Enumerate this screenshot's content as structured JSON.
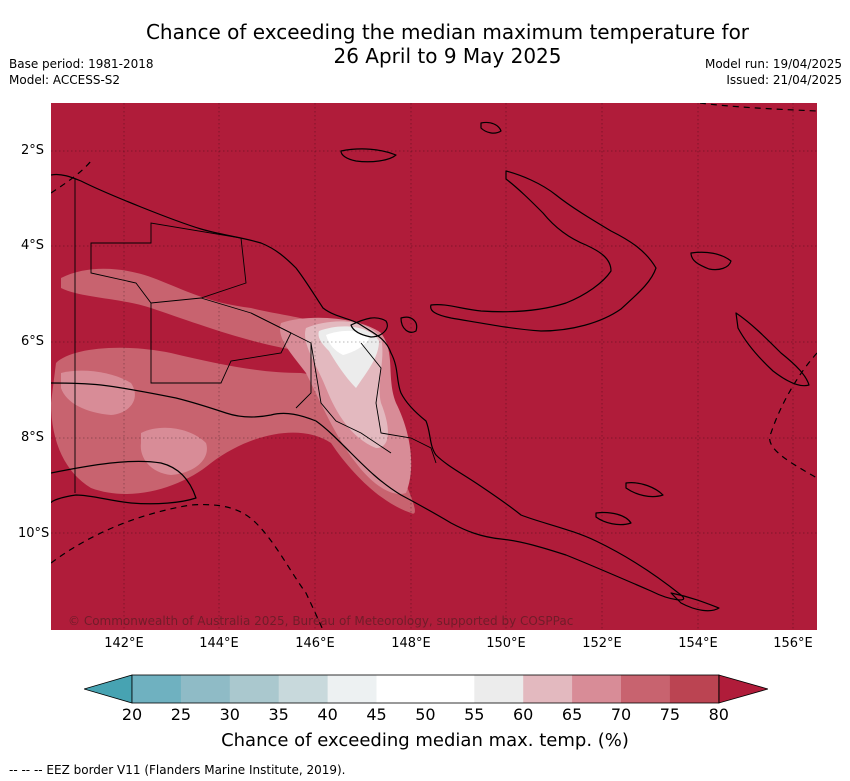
{
  "title_line1": "Chance of exceeding the median maximum temperature for",
  "title_line2": "26 April to 9 May 2025",
  "base_period": "Base period: 1981-2018",
  "model": "Model: ACCESS-S2",
  "model_run": "Model run: 19/04/2025",
  "issued": "Issued: 21/04/2025",
  "lat_labels": [
    "2°S",
    "4°S",
    "6°S",
    "8°S",
    "10°S"
  ],
  "lon_labels": [
    "142°E",
    "144°E",
    "146°E",
    "148°E",
    "150°E",
    "152°E",
    "154°E",
    "156°E"
  ],
  "copyright": "© Commonwealth of Australia 2025, Bureau of Meteorology, supported by COSPPac",
  "colorbar": {
    "ticks": [
      "20",
      "25",
      "30",
      "35",
      "40",
      "45",
      "50",
      "55",
      "60",
      "65",
      "70",
      "75",
      "80"
    ],
    "colors": [
      "#47a3b2",
      "#6fb1c0",
      "#8fbbc6",
      "#aac8ce",
      "#c8d9dc",
      "#edf1f2",
      "#ffffff",
      "#ffffff",
      "#ececec",
      "#e3b9bf",
      "#d88c97",
      "#c8636f",
      "#bb4452",
      "#b01c3a"
    ],
    "label": "Chance of exceeding median max. temp. (%)"
  },
  "footer": "--  --  -- EEZ border V11 (Flanders Marine Institute, 2019)."
}
